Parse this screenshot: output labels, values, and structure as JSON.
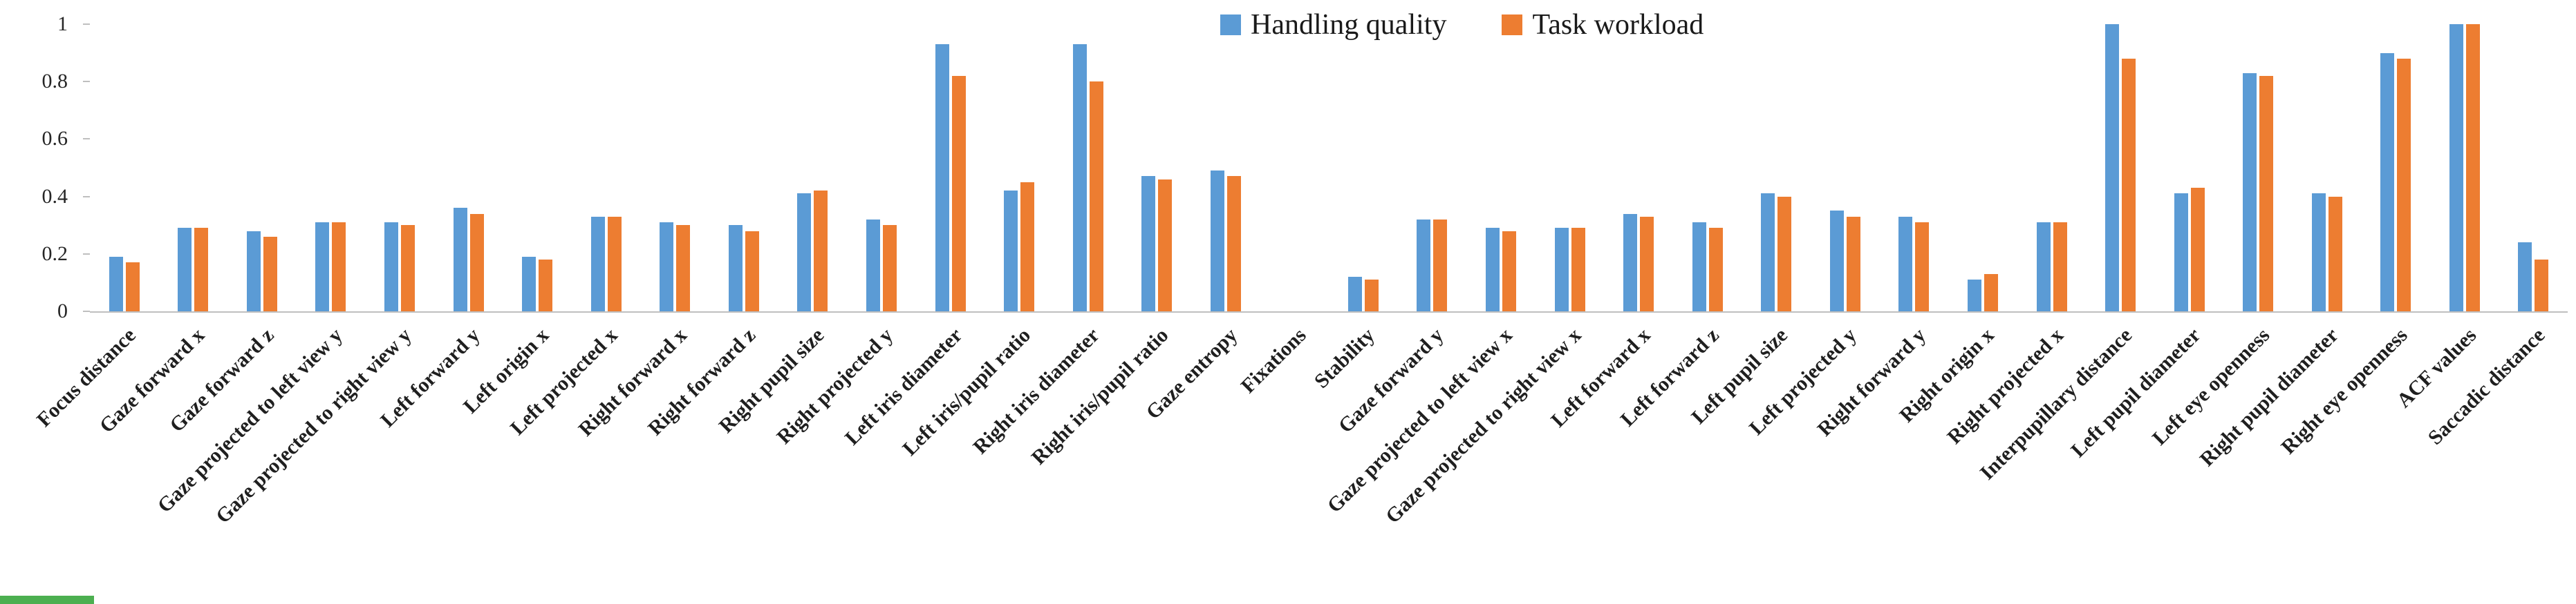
{
  "legend": {
    "items": [
      {
        "label": "Handling quality",
        "color": "#5B9BD5"
      },
      {
        "label": "Task workload",
        "color": "#ED7D31"
      }
    ]
  },
  "chart_data": {
    "type": "bar",
    "title": "",
    "xlabel": "",
    "ylabel": "",
    "ylim": [
      0,
      1
    ],
    "yticks": [
      0,
      0.2,
      0.4,
      0.6,
      0.8,
      1
    ],
    "y_tick_labels": [
      "0",
      "0.2",
      "0.4",
      "0.6",
      "0.8",
      "1"
    ],
    "grid": false,
    "legend_position": "top",
    "categories": [
      "Focus distance",
      "Gaze forward x",
      "Gaze forward z",
      "Gaze projected to left view y",
      "Gaze projected to right view y",
      "Left forward y",
      "Left origin x",
      "Left projected x",
      "Right forward x",
      "Right forward z",
      "Right pupil size",
      "Right projected y",
      "Left iris diameter",
      "Left iris/pupil ratio",
      "Right iris diameter",
      "Right iris/pupil ratio",
      "Gaze entropy",
      "Fixations",
      "Stability",
      "Gaze forward y",
      "Gaze projected to left view x",
      "Gaze projected to right view x",
      "Left forward x",
      "Left forward z",
      "Left pupil size",
      "Left projected y",
      "Right forward y",
      "Right origin x",
      "Right projected x",
      "Interpupillary distance",
      "Left pupil diameter",
      "Left eye openness",
      "Right pupil diameter",
      "Right eye openness",
      "ACF values",
      "Saccadic distance"
    ],
    "series": [
      {
        "name": "Handling quality",
        "color": "#5B9BD5",
        "values": [
          0.19,
          0.29,
          0.28,
          0.31,
          0.31,
          0.36,
          0.19,
          0.33,
          0.31,
          0.3,
          0.41,
          0.32,
          0.93,
          0.42,
          0.93,
          0.47,
          0.49,
          0,
          0.12,
          0.32,
          0.29,
          0.29,
          0.34,
          0.31,
          0.41,
          0.35,
          0.33,
          0.11,
          0.31,
          1.0,
          0.41,
          0.83,
          0.41,
          0.9,
          1.0,
          0.24
        ]
      },
      {
        "name": "Task workload",
        "color": "#ED7D31",
        "values": [
          0.17,
          0.29,
          0.26,
          0.31,
          0.3,
          0.34,
          0.18,
          0.33,
          0.3,
          0.28,
          0.42,
          0.3,
          0.82,
          0.45,
          0.8,
          0.46,
          0.47,
          0,
          0.11,
          0.32,
          0.28,
          0.29,
          0.33,
          0.29,
          0.4,
          0.33,
          0.31,
          0.13,
          0.31,
          0.88,
          0.43,
          0.82,
          0.4,
          0.88,
          1.0,
          0.18
        ]
      }
    ]
  },
  "colors": {
    "background": "#FFFFFF",
    "axis": "#BFBFBF",
    "text": "#262626",
    "partial_green_strip": "#4CAF50"
  }
}
